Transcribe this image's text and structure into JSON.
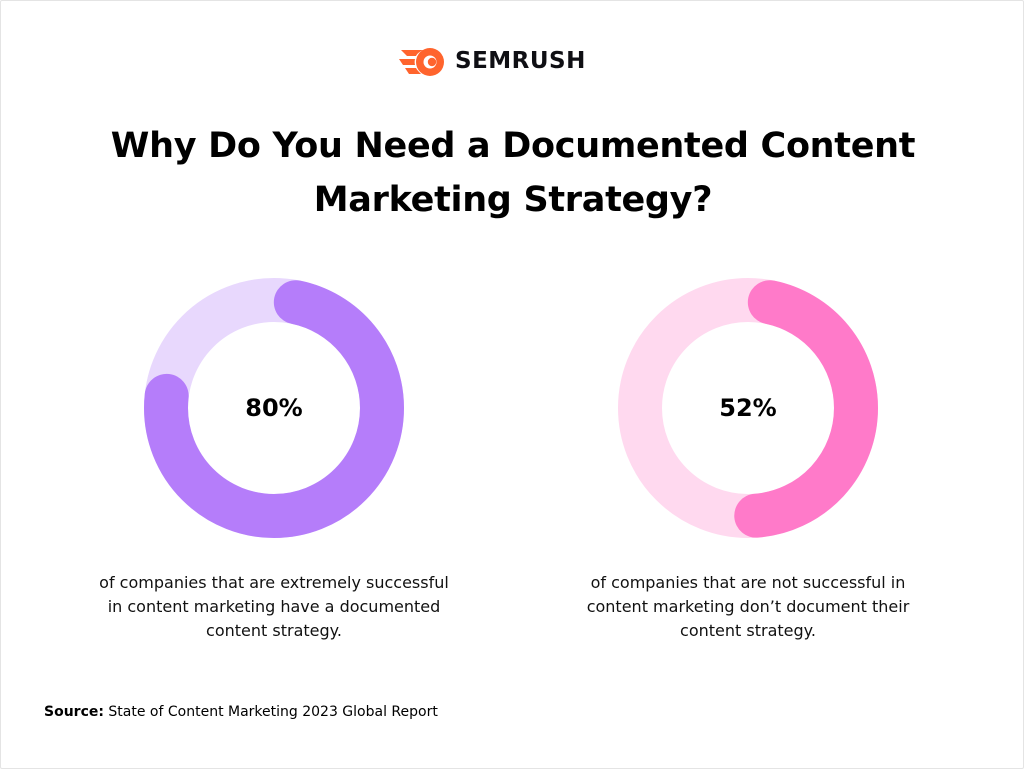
{
  "brand": {
    "name": "SEMRUSH",
    "logo_icon": "semrush-fireball-icon",
    "accent": "#FF642D"
  },
  "title": "Why Do You Need a Documented Content Marketing Strategy?",
  "chart_data": [
    {
      "type": "pie",
      "value": 80,
      "label": "80%",
      "caption": "of companies that are extremely successful in content marketing have a documented content strategy.",
      "color": "#B57DFA",
      "track_color": "#E8D8FD"
    },
    {
      "type": "pie",
      "value": 52,
      "label": "52%",
      "caption": "of companies that are not successful in content marketing don’t document their content strategy.",
      "color": "#FF7AC9",
      "track_color": "#FFD9EF"
    }
  ],
  "source": {
    "label": "Source:",
    "text": "State of Content Marketing 2023 Global Report"
  }
}
